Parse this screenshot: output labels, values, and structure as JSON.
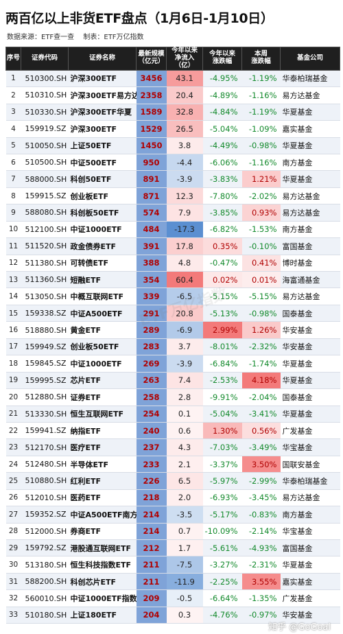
{
  "title": "两百亿以上非货ETF盘点（1月6日-1月10日）",
  "source_line": [
    "数据来源：ETF查一查",
    "制表：ETF万亿指数"
  ],
  "headers": [
    "序号",
    "证券代码",
    "证券名称",
    "最新规模\n（亿元）",
    "今年以来\n净流入（亿）",
    "今年以来\n涨跌幅",
    "本周\n涨跌幅",
    "基金公司"
  ],
  "colors": {
    "pos_text": "#c00000",
    "neg_text": "#138a2c",
    "scale_bar": "#7fa3d8",
    "pos_fill": "#f26b6b",
    "neg_fill": "#5b8fd1"
  },
  "watermark": "ETF万亿指数",
  "credit": "知乎 @GoGoal",
  "rows": [
    {
      "no": "1",
      "code": "510300.SH",
      "name": "沪深300ETF",
      "scale": 3456,
      "flow": 43.1,
      "flow_label": "43.1",
      "ytd": -4.95,
      "ytd_label": "-4.95%",
      "wk": -1.19,
      "wk_label": "-1.19%",
      "fund": "华泰柏瑞基金"
    },
    {
      "no": "2",
      "code": "510310.SH",
      "name": "沪深300ETF易方达",
      "scale": 2358,
      "flow": 20.4,
      "flow_label": "20.4",
      "ytd": -4.89,
      "ytd_label": "-4.89%",
      "wk": -1.16,
      "wk_label": "-1.16%",
      "fund": "易方达基金"
    },
    {
      "no": "3",
      "code": "510330.SH",
      "name": "沪深300ETF华夏",
      "scale": 1589,
      "flow": 32.8,
      "flow_label": "32.8",
      "ytd": -4.84,
      "ytd_label": "-4.84%",
      "wk": -1.19,
      "wk_label": "-1.19%",
      "fund": "华夏基金"
    },
    {
      "no": "4",
      "code": "159919.SZ",
      "name": "沪深300ETF",
      "scale": 1529,
      "flow": 26.5,
      "flow_label": "26.5",
      "ytd": -5.04,
      "ytd_label": "-5.04%",
      "wk": -1.09,
      "wk_label": "-1.09%",
      "fund": "嘉实基金"
    },
    {
      "no": "5",
      "code": "510050.SH",
      "name": "上证50ETF",
      "scale": 1450,
      "flow": 3.8,
      "flow_label": "3.8",
      "ytd": -4.49,
      "ytd_label": "-4.49%",
      "wk": -0.98,
      "wk_label": "-0.98%",
      "fund": "华夏基金"
    },
    {
      "no": "6",
      "code": "510500.SH",
      "name": "中证500ETF",
      "scale": 950,
      "flow": -4.4,
      "flow_label": "-4.4",
      "ytd": -6.06,
      "ytd_label": "-6.06%",
      "wk": -1.16,
      "wk_label": "-1.16%",
      "fund": "南方基金"
    },
    {
      "no": "7",
      "code": "588000.SH",
      "name": "科创50ETF",
      "scale": 891,
      "flow": -3.9,
      "flow_label": "-3.9",
      "ytd": -3.83,
      "ytd_label": "-3.83%",
      "wk": 1.21,
      "wk_label": "1.21%",
      "fund": "华夏基金"
    },
    {
      "no": "8",
      "code": "159915.SZ",
      "name": "创业板ETF",
      "scale": 871,
      "flow": 12.3,
      "flow_label": "12.3",
      "ytd": -7.8,
      "ytd_label": "-7.80%",
      "wk": -2.02,
      "wk_label": "-2.02%",
      "fund": "易方达基金"
    },
    {
      "no": "9",
      "code": "588080.SH",
      "name": "科创板50ETF",
      "scale": 574,
      "flow": 7.9,
      "flow_label": "7.9",
      "ytd": -3.85,
      "ytd_label": "-3.85%",
      "wk": 0.93,
      "wk_label": "0.93%",
      "fund": "易方达基金"
    },
    {
      "no": "10",
      "code": "512100.SH",
      "name": "中证1000ETF",
      "scale": 484,
      "flow": -17.3,
      "flow_label": "-17.3",
      "ytd": -6.82,
      "ytd_label": "-6.82%",
      "wk": -1.53,
      "wk_label": "-1.53%",
      "fund": "南方基金"
    },
    {
      "no": "11",
      "code": "511520.SH",
      "name": "政金债券ETF",
      "scale": 391,
      "flow": 17.8,
      "flow_label": "17.8",
      "ytd": 0.35,
      "ytd_label": "0.35%",
      "wk": -0.1,
      "wk_label": "-0.10%",
      "fund": "富国基金"
    },
    {
      "no": "12",
      "code": "511380.SH",
      "name": "可转债ETF",
      "scale": 388,
      "flow": 4.8,
      "flow_label": "4.8",
      "ytd": -0.47,
      "ytd_label": "-0.47%",
      "wk": 0.41,
      "wk_label": "0.41%",
      "fund": "博时基金"
    },
    {
      "no": "13",
      "code": "511360.SH",
      "name": "短融ETF",
      "scale": 354,
      "flow": 60.4,
      "flow_label": "60.4",
      "ytd": 0.02,
      "ytd_label": "0.02%",
      "wk": 0.01,
      "wk_label": "0.01%",
      "fund": "海富通基金"
    },
    {
      "no": "14",
      "code": "513050.SH",
      "name": "中概互联网ETF",
      "scale": 339,
      "flow": -6.5,
      "flow_label": "-6.5",
      "ytd": -5.15,
      "ytd_label": "-5.15%",
      "wk": -5.15,
      "wk_label": "-5.15%",
      "fund": "易方达基金"
    },
    {
      "no": "15",
      "code": "159338.SZ",
      "name": "中证A500ETF",
      "scale": 291,
      "flow": 20.8,
      "flow_label": "20.8",
      "ytd": -5.13,
      "ytd_label": "-5.13%",
      "wk": -0.98,
      "wk_label": "-0.98%",
      "fund": "国泰基金"
    },
    {
      "no": "16",
      "code": "518880.SH",
      "name": "黄金ETF",
      "scale": 289,
      "flow": -6.9,
      "flow_label": "-6.9",
      "ytd": 2.99,
      "ytd_label": "2.99%",
      "wk": 1.26,
      "wk_label": "1.26%",
      "fund": "华安基金"
    },
    {
      "no": "17",
      "code": "159949.SZ",
      "name": "创业板50ETF",
      "scale": 283,
      "flow": 3.7,
      "flow_label": "3.7",
      "ytd": -8.01,
      "ytd_label": "-8.01%",
      "wk": -2.32,
      "wk_label": "-2.32%",
      "fund": "华安基金"
    },
    {
      "no": "18",
      "code": "159845.SZ",
      "name": "中证1000ETF",
      "scale": 269,
      "flow": -3.9,
      "flow_label": "-3.9",
      "ytd": -6.84,
      "ytd_label": "-6.84%",
      "wk": -1.74,
      "wk_label": "-1.74%",
      "fund": "华夏基金"
    },
    {
      "no": "19",
      "code": "159995.SZ",
      "name": "芯片ETF",
      "scale": 263,
      "flow": 7.4,
      "flow_label": "7.4",
      "ytd": -2.53,
      "ytd_label": "-2.53%",
      "wk": 4.18,
      "wk_label": "4.18%",
      "fund": "华夏基金"
    },
    {
      "no": "20",
      "code": "512880.SH",
      "name": "证券ETF",
      "scale": 258,
      "flow": 2.8,
      "flow_label": "2.8",
      "ytd": -9.91,
      "ytd_label": "-9.91%",
      "wk": -2.04,
      "wk_label": "-2.04%",
      "fund": "国泰基金"
    },
    {
      "no": "21",
      "code": "513330.SH",
      "name": "恒生互联网ETF",
      "scale": 254,
      "flow": 0.1,
      "flow_label": "0.1",
      "ytd": -5.04,
      "ytd_label": "-5.04%",
      "wk": -3.41,
      "wk_label": "-3.41%",
      "fund": "华夏基金"
    },
    {
      "no": "22",
      "code": "159941.SZ",
      "name": "纳指ETF",
      "scale": 240,
      "flow": 0.6,
      "flow_label": "0.6",
      "ytd": 1.3,
      "ytd_label": "1.30%",
      "wk": 0.56,
      "wk_label": "0.56%",
      "fund": "广发基金"
    },
    {
      "no": "23",
      "code": "512170.SH",
      "name": "医疗ETF",
      "scale": 237,
      "flow": 4.3,
      "flow_label": "4.3",
      "ytd": -7.03,
      "ytd_label": "-7.03%",
      "wk": -3.49,
      "wk_label": "-3.49%",
      "fund": "华宝基金"
    },
    {
      "no": "24",
      "code": "512480.SH",
      "name": "半导体ETF",
      "scale": 233,
      "flow": 2.1,
      "flow_label": "2.1",
      "ytd": -3.37,
      "ytd_label": "-3.37%",
      "wk": 3.5,
      "wk_label": "3.50%",
      "fund": "国联安基金"
    },
    {
      "no": "25",
      "code": "510880.SH",
      "name": "红利ETF",
      "scale": 226,
      "flow": 6.5,
      "flow_label": "6.5",
      "ytd": -5.97,
      "ytd_label": "-5.97%",
      "wk": -2.99,
      "wk_label": "-2.99%",
      "fund": "华泰柏瑞基金"
    },
    {
      "no": "26",
      "code": "512010.SH",
      "name": "医药ETF",
      "scale": 218,
      "flow": 2.0,
      "flow_label": "2.0",
      "ytd": -6.93,
      "ytd_label": "-6.93%",
      "wk": -3.45,
      "wk_label": "-3.45%",
      "fund": "易方达基金"
    },
    {
      "no": "27",
      "code": "159352.SZ",
      "name": "中证A500ETF南方",
      "scale": 214,
      "flow": -3.5,
      "flow_label": "-3.5",
      "ytd": -5.17,
      "ytd_label": "-5.17%",
      "wk": -0.83,
      "wk_label": "-0.83%",
      "fund": "南方基金"
    },
    {
      "no": "28",
      "code": "512000.SH",
      "name": "券商ETF",
      "scale": 214,
      "flow": 0.7,
      "flow_label": "0.7",
      "ytd": -10.09,
      "ytd_label": "-10.09%",
      "wk": -2.14,
      "wk_label": "-2.14%",
      "fund": "华宝基金"
    },
    {
      "no": "29",
      "code": "159792.SZ",
      "name": "港股通互联网ETF",
      "scale": 212,
      "flow": 1.7,
      "flow_label": "1.7",
      "ytd": -5.61,
      "ytd_label": "-5.61%",
      "wk": -4.93,
      "wk_label": "-4.93%",
      "fund": "富国基金"
    },
    {
      "no": "30",
      "code": "513180.SH",
      "name": "恒生科技指数ETF",
      "scale": 211,
      "flow": -7.5,
      "flow_label": "-7.5",
      "ytd": -3.27,
      "ytd_label": "-3.27%",
      "wk": -2.31,
      "wk_label": "-2.31%",
      "fund": "华夏基金"
    },
    {
      "no": "31",
      "code": "588200.SH",
      "name": "科创芯片ETF",
      "scale": 211,
      "flow": -11.9,
      "flow_label": "-11.9",
      "ytd": -2.25,
      "ytd_label": "-2.25%",
      "wk": 3.55,
      "wk_label": "3.55%",
      "fund": "嘉实基金"
    },
    {
      "no": "32",
      "code": "560010.SH",
      "name": "中证1000ETF指数",
      "scale": 209,
      "flow": -0.5,
      "flow_label": "-0.5",
      "ytd": -6.64,
      "ytd_label": "-6.64%",
      "wk": -1.35,
      "wk_label": "-1.35%",
      "fund": "广发基金"
    },
    {
      "no": "33",
      "code": "510180.SH",
      "name": "上证180ETF",
      "scale": 204,
      "flow": 0.3,
      "flow_label": "0.3",
      "ytd": -4.76,
      "ytd_label": "-4.76%",
      "wk": -0.97,
      "wk_label": "-0.97%",
      "fund": "华安基金"
    }
  ]
}
